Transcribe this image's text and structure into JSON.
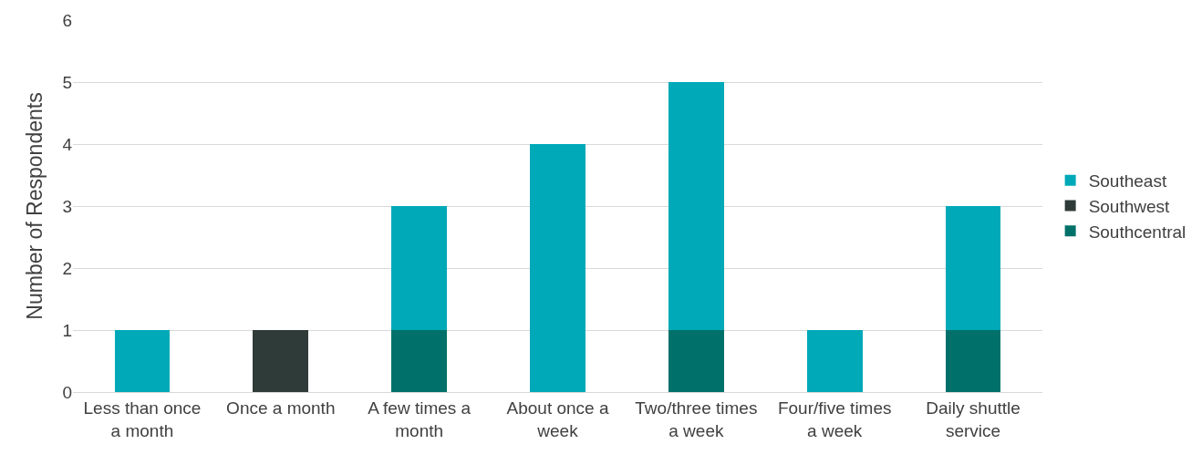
{
  "chart_data": {
    "type": "bar",
    "stacked": true,
    "ylabel": "Number of Respondents",
    "categories": [
      "Less than once a month",
      "Once a month",
      "A few times a month",
      "About once a week",
      "Two/three times a week",
      "Four/five times a week",
      "Daily shuttle service"
    ],
    "series": [
      {
        "name": "Southcentral",
        "color": "#00716a",
        "values": [
          0,
          0,
          1,
          0,
          1,
          0,
          1
        ]
      },
      {
        "name": "Southwest",
        "color": "#2f3b38",
        "values": [
          0,
          1,
          0,
          0,
          0,
          0,
          0
        ]
      },
      {
        "name": "Southeast",
        "color": "#00a9b7",
        "values": [
          1,
          0,
          2,
          4,
          4,
          1,
          2
        ]
      }
    ],
    "ylim": [
      0,
      6
    ],
    "yticks": [
      0,
      1,
      2,
      3,
      4,
      5,
      6
    ],
    "grid": "y",
    "legend": "right"
  }
}
